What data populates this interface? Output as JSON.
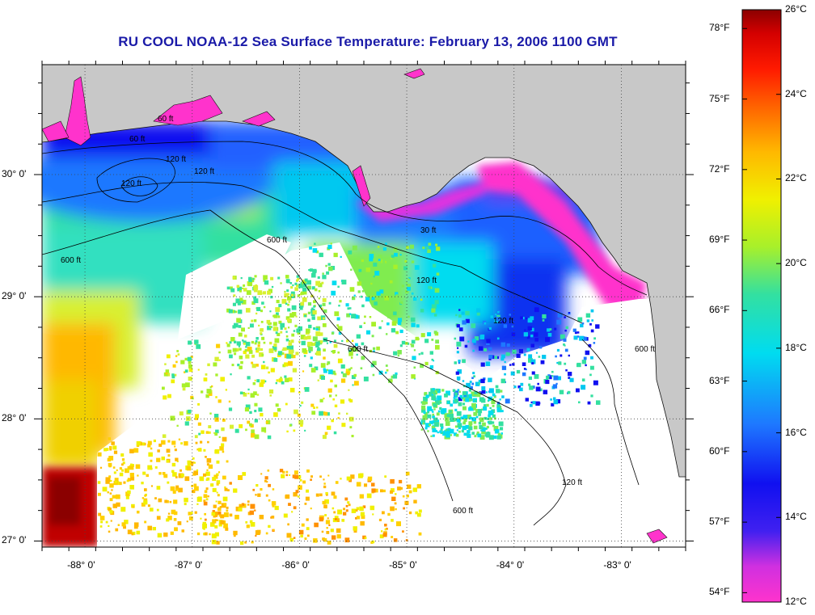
{
  "title": "RU COOL  NOAA-12  Sea Surface Temperature:  February 13, 2006 1100 GMT",
  "map": {
    "lon_range": [
      -88.4,
      -82.4
    ],
    "lat_range": [
      26.95,
      30.9
    ],
    "lat_ticks": [
      {
        "value": 30.0,
        "label": "30° 0'"
      },
      {
        "value": 29.0,
        "label": "29° 0'"
      },
      {
        "value": 28.0,
        "label": "28° 0'"
      },
      {
        "value": 27.0,
        "label": "27° 0'"
      }
    ],
    "lon_ticks": [
      {
        "value": -88.0,
        "label": "-88° 0'"
      },
      {
        "value": -87.0,
        "label": "-87° 0'"
      },
      {
        "value": -86.0,
        "label": "-86° 0'"
      },
      {
        "value": -85.0,
        "label": "-85° 0'"
      },
      {
        "value": -84.0,
        "label": "-84° 0'"
      },
      {
        "value": -83.0,
        "label": "-83° 0'"
      }
    ],
    "contour_labels": [
      "60 ft",
      "60 ft",
      "120 ft",
      "120 ft",
      "120 ft",
      "600 ft",
      "600 ft",
      "600 ft",
      "600 ft",
      "30 ft",
      "120 ft",
      "120 ft",
      "120 ft",
      "600 ft"
    ],
    "land_color": "#c8c8c8",
    "cloud_color": "#ffffff"
  },
  "colorbar": {
    "celsius_ticks": [
      {
        "value": 26,
        "label": "26°C"
      },
      {
        "value": 24,
        "label": "24°C"
      },
      {
        "value": 22,
        "label": "22°C"
      },
      {
        "value": 20,
        "label": "20°C"
      },
      {
        "value": 18,
        "label": "18°C"
      },
      {
        "value": 16,
        "label": "16°C"
      },
      {
        "value": 14,
        "label": "14°C"
      },
      {
        "value": 12,
        "label": "12°C"
      }
    ],
    "fahrenheit_ticks": [
      {
        "value": 78,
        "label": "78°F"
      },
      {
        "value": 75,
        "label": "75°F"
      },
      {
        "value": 72,
        "label": "72°F"
      },
      {
        "value": 69,
        "label": "69°F"
      },
      {
        "value": 66,
        "label": "66°F"
      },
      {
        "value": 63,
        "label": "63°F"
      },
      {
        "value": 60,
        "label": "60°F"
      },
      {
        "value": 57,
        "label": "57°F"
      },
      {
        "value": 54,
        "label": "54°F"
      }
    ],
    "colors": [
      "#ff33cc",
      "#9b30d0",
      "#1010f0",
      "#1e78ff",
      "#00dcf0",
      "#33e0a0",
      "#a8f02a",
      "#f0f000",
      "#ffb800",
      "#ff6a00",
      "#ff1a00",
      "#d40000",
      "#8b0000"
    ]
  }
}
